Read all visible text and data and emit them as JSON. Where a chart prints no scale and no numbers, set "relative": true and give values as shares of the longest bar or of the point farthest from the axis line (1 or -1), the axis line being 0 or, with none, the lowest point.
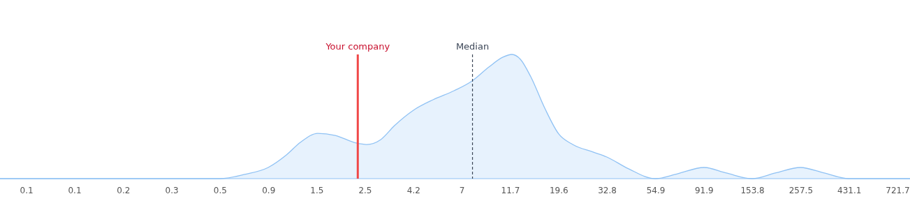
{
  "chart_data": {
    "type": "area",
    "relative": true,
    "x": [
      0.051,
      0.53,
      0.689,
      0.886,
      1.076,
      1.248,
      1.502,
      1.81,
      2.26,
      2.53,
      2.94,
      3.4,
      4.16,
      5.12,
      6.41,
      7.77,
      9.29,
      10.78,
      11.87,
      12.99,
      14.51,
      16.84,
      19.53,
      22.67,
      28.3,
      32.6,
      41.1,
      54.5,
      69.1,
      91.7,
      116.4,
      153.3,
      195.8,
      256,
      330,
      428,
      822
    ],
    "series": [
      {
        "color": "#90c2f4",
        "values": [
          0,
          0,
          0.034,
          0.09,
          0.191,
          0.292,
          0.365,
          0.348,
          0.287,
          0.275,
          0.315,
          0.427,
          0.551,
          0.635,
          0.708,
          0.787,
          0.899,
          0.978,
          1,
          0.961,
          0.82,
          0.567,
          0.36,
          0.275,
          0.213,
          0.174,
          0.079,
          0,
          0.039,
          0.09,
          0.045,
          0,
          0.045,
          0.09,
          0.045,
          0,
          0
        ]
      }
    ],
    "log": "x",
    "xlim": [
      0.051,
      822
    ],
    "xticks": [
      {
        "value": 0.0677,
        "label": "0.1"
      },
      {
        "value": 0.113,
        "label": "0.1"
      },
      {
        "value": 0.19,
        "label": "0.2"
      },
      {
        "value": 0.318,
        "label": "0.3"
      },
      {
        "value": 0.532,
        "label": "0.5"
      },
      {
        "value": 0.891,
        "label": "0.9"
      },
      {
        "value": 1.49,
        "label": "1.5"
      },
      {
        "value": 2.49,
        "label": "2.5"
      },
      {
        "value": 4.17,
        "label": "4.2"
      },
      {
        "value": 6.98,
        "label": "7"
      },
      {
        "value": 11.69,
        "label": "11.7"
      },
      {
        "value": 19.57,
        "label": "19.6"
      },
      {
        "value": 32.76,
        "label": "32.8"
      },
      54.9,
      91.9,
      153.8,
      257.5,
      431.1,
      {
        "value": 721.7,
        "label": "721.7"
      }
    ],
    "ref_lines": [
      {
        "axis": "x",
        "value": 2.3,
        "label": "Your company",
        "color": "#f04848",
        "line_style": "solid"
      },
      {
        "axis": "x",
        "value": 7.8,
        "label": "Median",
        "color": "#3c4657",
        "line_style": "dashed"
      }
    ],
    "tick_labels": "x"
  }
}
